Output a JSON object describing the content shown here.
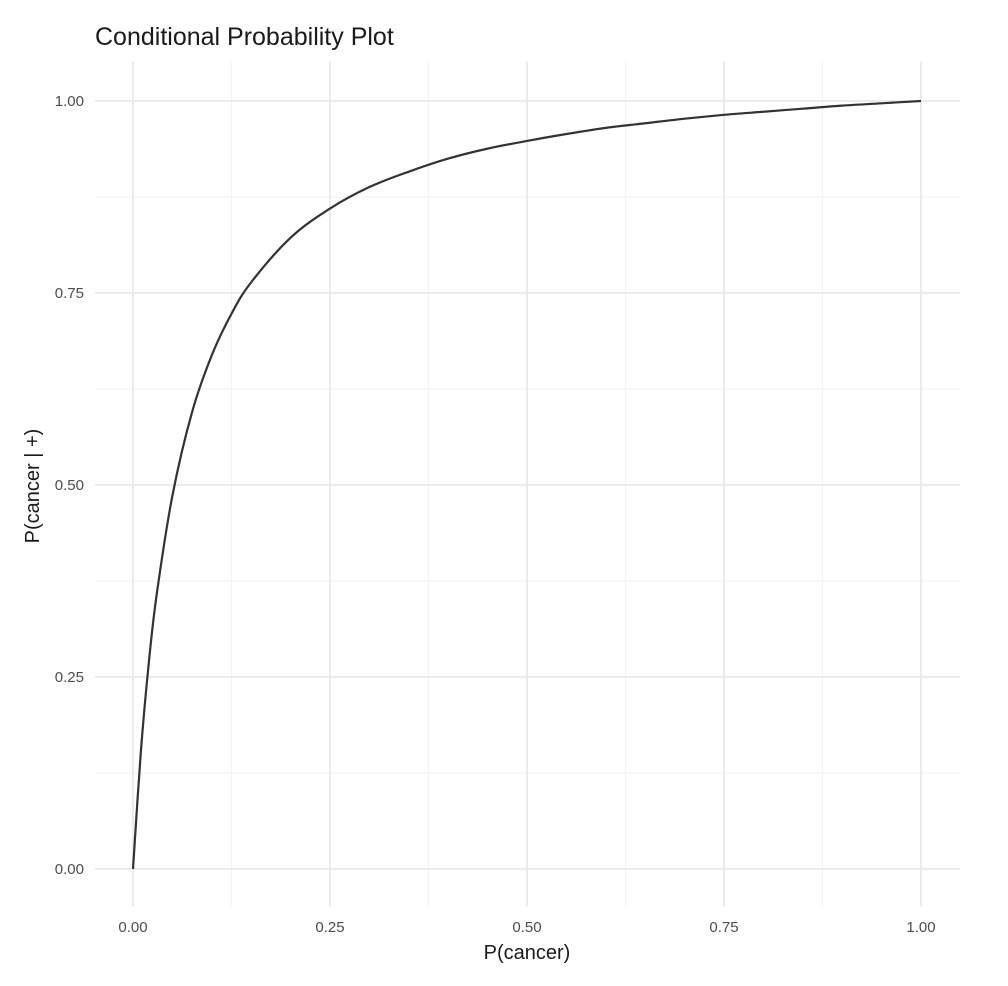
{
  "chart_data": {
    "type": "line",
    "title": "Conditional Probability Plot",
    "xlabel": "P(cancer)",
    "ylabel": "P(cancer | +)",
    "xlim": [
      0,
      1
    ],
    "ylim": [
      0,
      1
    ],
    "x_ticks": [
      "0.00",
      "0.25",
      "0.50",
      "0.75",
      "1.00"
    ],
    "y_ticks": [
      "0.00",
      "0.25",
      "0.50",
      "0.75",
      "1.00"
    ],
    "grid": true,
    "legend": "none",
    "series": [
      {
        "color": "#333333",
        "x": [
          0,
          0.01,
          0.02,
          0.03,
          0.05,
          0.075,
          0.1,
          0.125,
          0.15,
          0.2,
          0.25,
          0.3,
          0.35,
          0.4,
          0.45,
          0.5,
          0.55,
          0.6,
          0.65,
          0.7,
          0.75,
          0.8,
          0.85,
          0.9,
          0.95,
          1.0
        ],
        "y": [
          0,
          0.153,
          0.268,
          0.357,
          0.486,
          0.595,
          0.669,
          0.723,
          0.764,
          0.822,
          0.86,
          0.888,
          0.908,
          0.925,
          0.938,
          0.948,
          0.957,
          0.965,
          0.971,
          0.977,
          0.982,
          0.986,
          0.99,
          0.994,
          0.997,
          1.0
        ]
      }
    ]
  }
}
